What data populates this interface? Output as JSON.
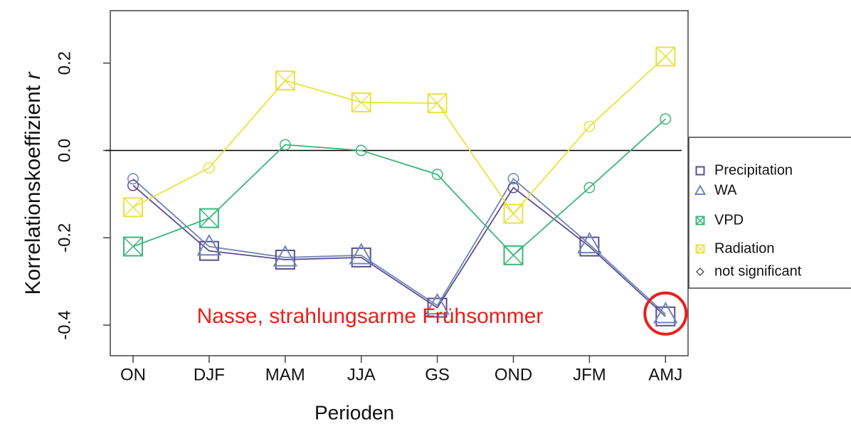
{
  "chart_data": {
    "type": "line",
    "y_label": "Korrelationskoeffizient",
    "y_label_var": "r",
    "x_label": "Perioden",
    "categories": [
      "ON",
      "DJF",
      "MAM",
      "JJA",
      "GS",
      "OND",
      "JFM",
      "AMJ"
    ],
    "ylim": [
      -0.47,
      0.32
    ],
    "yticks": [
      -0.4,
      -0.2,
      {
        "value": 0,
        "label": "0.0"
      },
      0.2
    ],
    "hline": 0,
    "series": [
      {
        "name": "Precipitation",
        "color": "#5b4d8f",
        "marker": "square",
        "values": [
          -0.08,
          -0.23,
          -0.25,
          -0.245,
          -0.36,
          -0.085,
          -0.22,
          -0.38
        ],
        "significant": [
          false,
          true,
          true,
          true,
          true,
          false,
          true,
          true
        ]
      },
      {
        "name": "WA",
        "color": "#6f86b8",
        "marker": "triangle",
        "values": [
          -0.065,
          -0.22,
          -0.245,
          -0.24,
          -0.355,
          -0.065,
          -0.215,
          -0.375
        ],
        "significant": [
          false,
          true,
          true,
          true,
          true,
          false,
          true,
          true
        ]
      },
      {
        "name": "VPD",
        "color": "#3db57c",
        "marker": "square-x",
        "values": [
          -0.22,
          -0.155,
          0.013,
          0.0,
          -0.055,
          -0.24,
          -0.085,
          0.072
        ],
        "significant": [
          true,
          true,
          false,
          false,
          false,
          true,
          false,
          false
        ]
      },
      {
        "name": "Radiation",
        "color": "#e9e23e",
        "marker": "square-x",
        "values": [
          -0.13,
          -0.04,
          0.16,
          0.11,
          0.108,
          -0.145,
          0.055,
          0.215
        ],
        "significant": [
          true,
          false,
          true,
          true,
          true,
          true,
          false,
          true
        ]
      }
    ],
    "not_significant_label": "not significant",
    "annotation": {
      "text": "Nasse, strahlungsarme Frühsommer",
      "color": "#e8201c",
      "highlight_category": 7
    }
  }
}
